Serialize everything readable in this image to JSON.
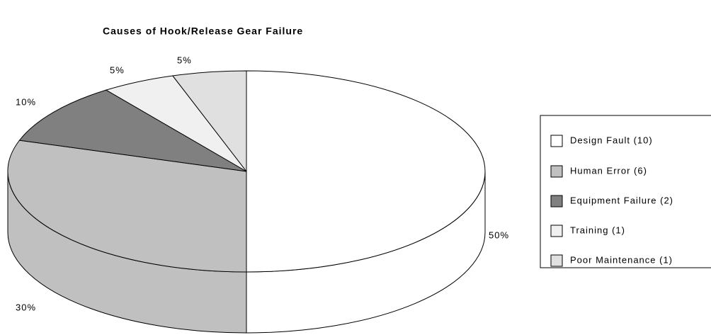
{
  "chart_data": {
    "type": "pie",
    "title": "Causes of Hook/Release Gear Failure",
    "categories": [
      "Design Fault (10)",
      "Human Error (6)",
      "Equipment Failure (2)",
      "Training (1)",
      "Poor Maintenance (1)"
    ],
    "values": [
      50,
      30,
      10,
      5,
      5
    ],
    "value_labels": [
      "50%",
      "30%",
      "10%",
      "5%",
      "5%"
    ],
    "colors": [
      "#ffffff",
      "#c0c0c0",
      "#808080",
      "#f0f0f0",
      "#e0e0e0"
    ],
    "legend": "right"
  }
}
